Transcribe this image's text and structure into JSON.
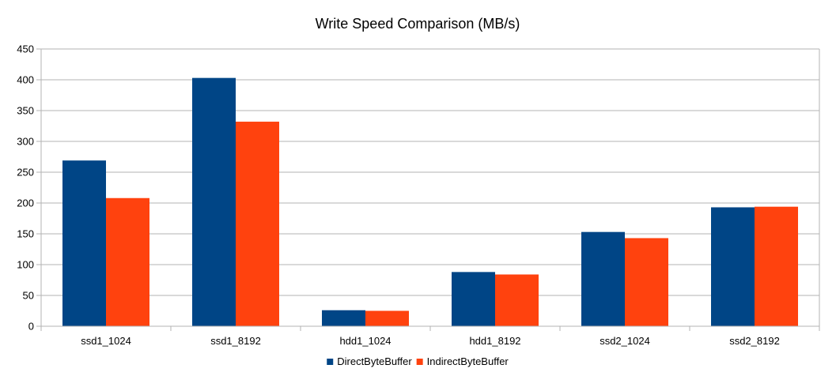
{
  "chart_data": {
    "type": "bar",
    "title": "Write Speed Comparison (MB/s)",
    "xlabel": "",
    "ylabel": "",
    "categories": [
      "ssd1_1024",
      "ssd1_8192",
      "hdd1_1024",
      "hdd1_8192",
      "ssd2_1024",
      "ssd2_8192"
    ],
    "series": [
      {
        "name": "DirectByteBuffer",
        "color": "#004586",
        "values": [
          269,
          403,
          26,
          88,
          153,
          193
        ]
      },
      {
        "name": "IndirectByteBuffer",
        "color": "#ff420e",
        "values": [
          208,
          332,
          25,
          84,
          143,
          194
        ]
      }
    ],
    "ylim": [
      0,
      450
    ],
    "yticks": [
      0,
      50,
      100,
      150,
      200,
      250,
      300,
      350,
      400,
      450
    ],
    "grid": true,
    "legend_position": "bottom"
  }
}
